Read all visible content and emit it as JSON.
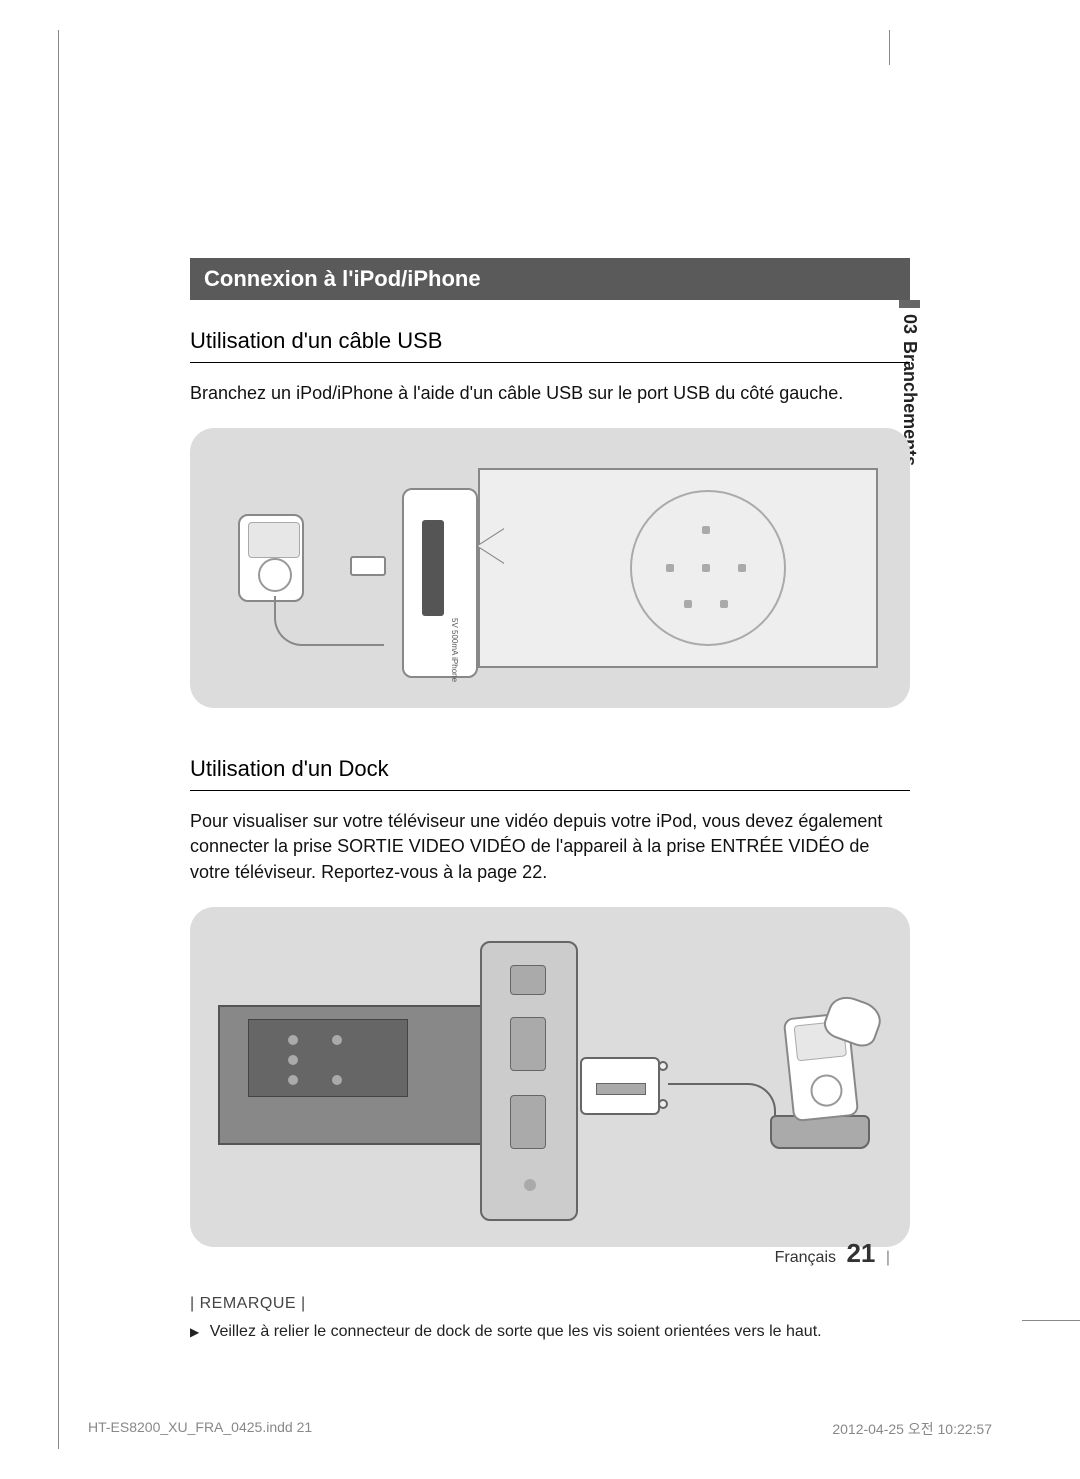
{
  "section_tab": {
    "number": "03",
    "label": "Branchements"
  },
  "header": "Connexion à l'iPod/iPhone",
  "usb": {
    "heading": "Utilisation d'un câble USB",
    "text": "Branchez un iPod/iPhone à l'aide d'un câble USB sur le port USB du côté gauche.",
    "port_label": "5V   500mA   iPhone"
  },
  "dock": {
    "heading": "Utilisation d'un Dock",
    "text": "Pour visualiser sur votre téléviseur une vidéo depuis votre iPod, vous devez également connecter la prise SORTIE VIDEO VIDÉO de l'appareil à la prise ENTRÉE VIDÉO de votre téléviseur. Reportez-vous à la page 22."
  },
  "note": {
    "label": "| REMARQUE |",
    "text": "Veillez à relier le connecteur de dock de sorte que les vis soient orientées vers le haut."
  },
  "footer": {
    "lang": "Français",
    "page": "21"
  },
  "print": {
    "left": "HT-ES8200_XU_FRA_0425.indd   21",
    "right": "2012-04-25   오전 10:22:57"
  },
  "colors": {
    "header_bg": "#5a5a5a",
    "diagram_bg": "#dcdcdc",
    "page_bg": "#ffffff"
  }
}
